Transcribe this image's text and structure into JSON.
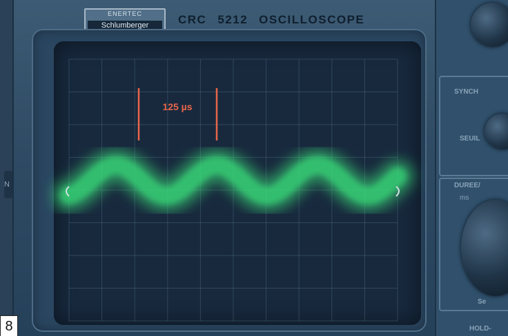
{
  "brand": {
    "line1": "ENERTEC",
    "line2": "Schlumberger"
  },
  "title": {
    "model": "CRC",
    "number": "5212",
    "kind": "OSCILLOSCOPE"
  },
  "screen": {
    "measurement_label": "125 µs",
    "trace_color": "#39e07a",
    "marker_color": "#e8664a"
  },
  "panel": {
    "sync_label": "SYNCH",
    "seuil_label": "SEUIL",
    "duree_label": "DUREE/",
    "ms_label": "ms",
    "se_label": "Se",
    "hold_label": "HOLD-"
  },
  "left_edge_label": "N",
  "figure_number": "8"
}
